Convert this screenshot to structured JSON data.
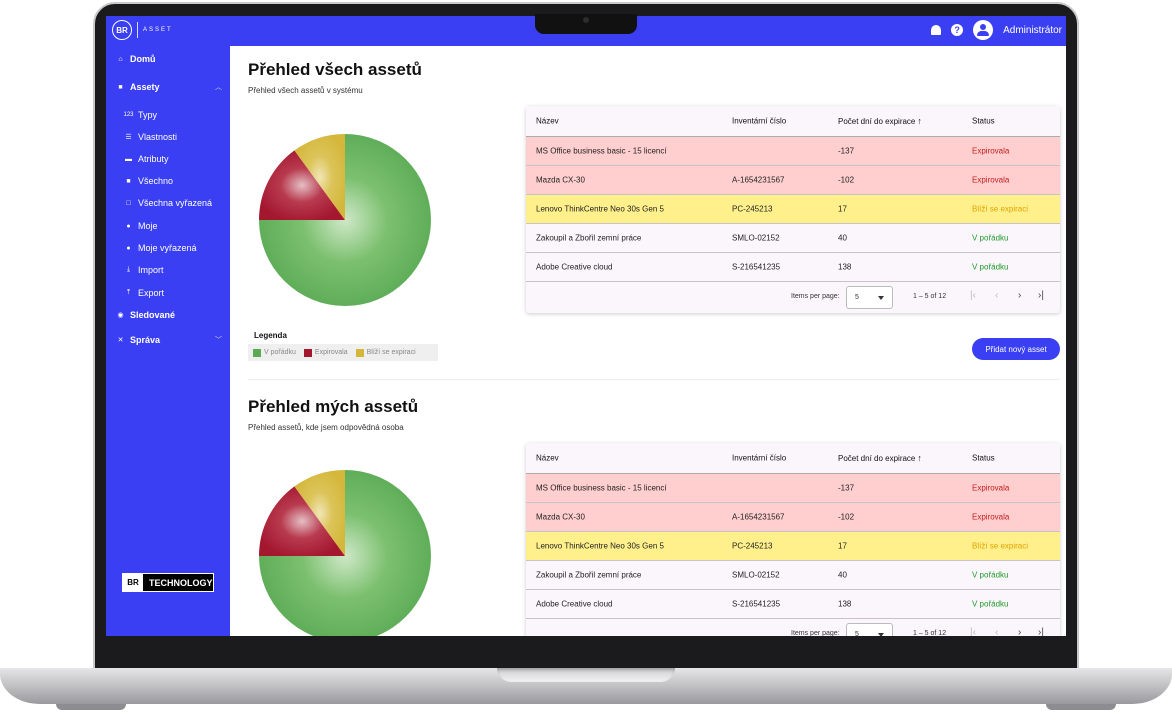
{
  "app": {
    "logo_text": "ASSET",
    "logo_mark": "BR",
    "user": "Administrátor"
  },
  "sidebar": {
    "items": [
      {
        "label": "Domů",
        "icon": "home-icon"
      },
      {
        "label": "Assety",
        "icon": "cube-icon"
      },
      {
        "label": "Typy",
        "icon": "123-icon"
      },
      {
        "label": "Vlastnosti",
        "icon": "list-icon"
      },
      {
        "label": "Atributy",
        "icon": "archive-icon"
      },
      {
        "label": "Všechno",
        "icon": "cube-icon"
      },
      {
        "label": "Všechna vyřazená",
        "icon": "cube-outline-icon"
      },
      {
        "label": "Moje",
        "icon": "person-icon"
      },
      {
        "label": "Moje vyřazená",
        "icon": "person-remove-icon"
      },
      {
        "label": "Import",
        "icon": "download-icon"
      },
      {
        "label": "Export",
        "icon": "upload-icon"
      },
      {
        "label": "Sledované",
        "icon": "eye-icon"
      },
      {
        "label": "Správa",
        "icon": "tools-icon"
      }
    ],
    "brand": {
      "mark": "BR",
      "text": "TECHNOLOGY"
    }
  },
  "colors": {
    "accent": "#3a3ff4",
    "ok": "#5aaa55",
    "expired": "#a3172f",
    "expiring": "#d4b73a"
  },
  "legend": {
    "title": "Legenda",
    "ok": "V pořádku",
    "expired": "Expirovala",
    "expiring": "Blíží se expiraci"
  },
  "chart_data": [
    {
      "type": "pie",
      "categories": [
        "V pořádku",
        "Expirovala",
        "Blíží se expiraci"
      ],
      "values": [
        75,
        15,
        10
      ]
    },
    {
      "type": "pie",
      "categories": [
        "V pořádku",
        "Expirovala",
        "Blíží se expiraci"
      ],
      "values": [
        75,
        15,
        10
      ]
    }
  ],
  "section1": {
    "title": "Přehled všech assetů",
    "subtitle": "Přehled všech assetů v systému"
  },
  "section2": {
    "title": "Přehled mých assetů",
    "subtitle": "Přehled assetů, kde jsem odpovědná osoba"
  },
  "table": {
    "headers": [
      "Název",
      "Inventární číslo",
      "Počet dní do expirace",
      "Status"
    ],
    "rows": [
      {
        "name": "MS Office business basic - 15 licencí",
        "inv": "",
        "days": "-137",
        "status": "Expirovala",
        "tone": "red"
      },
      {
        "name": "Mazda CX-30",
        "inv": "A-1654231567",
        "days": "-102",
        "status": "Expirovala",
        "tone": "red"
      },
      {
        "name": "Lenovo ThinkCentre Neo 30s Gen 5",
        "inv": "PC-245213",
        "days": "17",
        "status": "Blíží se expiraci",
        "tone": "yellow"
      },
      {
        "name": "Zakoupil a Zbořil zemní práce",
        "inv": "SMLO-02152",
        "days": "40",
        "status": "V pořádku",
        "tone": "white"
      },
      {
        "name": "Adobe Creative cloud",
        "inv": "S-216541235",
        "days": "138",
        "status": "V pořádku",
        "tone": "white"
      }
    ],
    "pager": {
      "label": "Items per page:",
      "size": "5",
      "range": "1 – 5 of 12"
    }
  },
  "add_button": "Přidat nový asset"
}
